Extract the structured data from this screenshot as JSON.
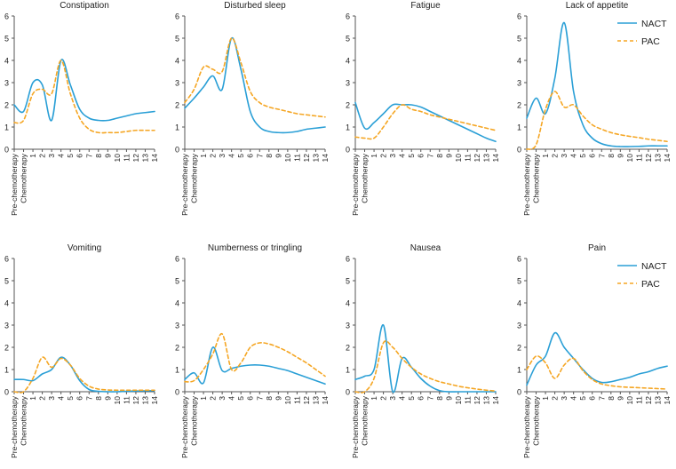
{
  "colors": {
    "nact": "#2a9fd6",
    "pac": "#f5a623",
    "axis": "#555555",
    "text": "#222222"
  },
  "chart_data": [
    {
      "type": "line",
      "title": "Constipation",
      "categories": [
        "Pre-chemotherapy",
        "Chemotherapy",
        "1",
        "2",
        "3",
        "4",
        "5",
        "6",
        "7",
        "8",
        "9",
        "10",
        "11",
        "12",
        "13",
        "14"
      ],
      "ylim": [
        0,
        6
      ],
      "yticks": [
        "0",
        "1",
        "2",
        "3",
        "4",
        "5",
        "6"
      ],
      "legend": false,
      "series": [
        {
          "name": "NACT",
          "values": [
            2.0,
            1.7,
            3.0,
            2.9,
            1.3,
            4.0,
            2.9,
            1.8,
            1.4,
            1.3,
            1.3,
            1.4,
            1.5,
            1.6,
            1.65,
            1.7
          ]
        },
        {
          "name": "PAC",
          "values": [
            1.2,
            1.3,
            2.5,
            2.7,
            2.5,
            4.0,
            2.5,
            1.4,
            0.9,
            0.75,
            0.75,
            0.75,
            0.8,
            0.85,
            0.85,
            0.85
          ]
        }
      ]
    },
    {
      "type": "line",
      "title": "Disturbed sleep",
      "categories": [
        "Pre-chemotherapy",
        "Chemotherapy",
        "1",
        "2",
        "3",
        "4",
        "5",
        "6",
        "7",
        "8",
        "9",
        "10",
        "11",
        "12",
        "13",
        "14"
      ],
      "ylim": [
        0,
        6
      ],
      "yticks": [
        "0",
        "1",
        "2",
        "3",
        "4",
        "5",
        "6"
      ],
      "legend": false,
      "series": [
        {
          "name": "NACT",
          "values": [
            1.85,
            2.3,
            2.8,
            3.3,
            2.7,
            5.0,
            3.6,
            1.7,
            1.0,
            0.8,
            0.75,
            0.75,
            0.8,
            0.9,
            0.95,
            1.0
          ]
        },
        {
          "name": "PAC",
          "values": [
            2.1,
            2.7,
            3.7,
            3.6,
            3.5,
            5.0,
            3.9,
            2.6,
            2.1,
            1.9,
            1.8,
            1.7,
            1.6,
            1.55,
            1.5,
            1.45
          ]
        }
      ]
    },
    {
      "type": "line",
      "title": "Fatigue",
      "categories": [
        "Pre-chemotherapy",
        "Chemotherapy",
        "1",
        "2",
        "3",
        "4",
        "5",
        "6",
        "7",
        "8",
        "9",
        "10",
        "11",
        "12",
        "13",
        "14"
      ],
      "ylim": [
        0,
        6
      ],
      "yticks": [
        "0",
        "1",
        "2",
        "3",
        "4",
        "5",
        "6"
      ],
      "legend": false,
      "series": [
        {
          "name": "NACT",
          "values": [
            2.1,
            0.95,
            1.2,
            1.6,
            2.0,
            2.0,
            2.0,
            1.9,
            1.7,
            1.5,
            1.3,
            1.1,
            0.9,
            0.7,
            0.5,
            0.35
          ]
        },
        {
          "name": "PAC",
          "values": [
            0.55,
            0.5,
            0.5,
            1.0,
            1.6,
            2.0,
            1.8,
            1.7,
            1.55,
            1.45,
            1.35,
            1.25,
            1.15,
            1.05,
            0.95,
            0.85
          ]
        }
      ]
    },
    {
      "type": "line",
      "title": "Lack of appetite",
      "categories": [
        "Pre-chemotherapy",
        "Chemotherapy",
        "1",
        "2",
        "3",
        "4",
        "5",
        "6",
        "7",
        "8",
        "9",
        "10",
        "11",
        "12",
        "13",
        "14"
      ],
      "ylim": [
        0,
        6
      ],
      "yticks": [
        "0",
        "1",
        "2",
        "3",
        "4",
        "5",
        "6"
      ],
      "legend": true,
      "series": [
        {
          "name": "NACT",
          "values": [
            1.4,
            2.3,
            1.6,
            3.2,
            5.7,
            2.6,
            1.1,
            0.5,
            0.25,
            0.15,
            0.12,
            0.12,
            0.13,
            0.15,
            0.15,
            0.15
          ]
        },
        {
          "name": "PAC",
          "values": [
            0.0,
            0.2,
            1.8,
            2.6,
            1.9,
            2.0,
            1.5,
            1.1,
            0.9,
            0.75,
            0.65,
            0.58,
            0.52,
            0.45,
            0.4,
            0.35
          ]
        }
      ]
    },
    {
      "type": "line",
      "title": "Vomiting",
      "categories": [
        "Pre-chemotherapy",
        "Chemotherapy",
        "1",
        "2",
        "3",
        "4",
        "5",
        "6",
        "7",
        "8",
        "9",
        "10",
        "11",
        "12",
        "13",
        "14"
      ],
      "ylim": [
        0,
        6
      ],
      "yticks": [
        "0",
        "1",
        "2",
        "3",
        "4",
        "5",
        "6"
      ],
      "legend": false,
      "series": [
        {
          "name": "NACT",
          "values": [
            0.55,
            0.55,
            0.5,
            0.8,
            1.0,
            1.55,
            1.2,
            0.5,
            0.1,
            0.02,
            0.0,
            0.0,
            0.02,
            0.03,
            0.04,
            0.05
          ]
        },
        {
          "name": "PAC",
          "values": [
            0.0,
            0.0,
            0.6,
            1.55,
            1.1,
            1.5,
            1.2,
            0.6,
            0.25,
            0.12,
            0.08,
            0.07,
            0.07,
            0.07,
            0.07,
            0.07
          ]
        }
      ]
    },
    {
      "type": "line",
      "title": "Numberness or tringling",
      "categories": [
        "Pre-chemotherapy",
        "Chemotherapy",
        "1",
        "2",
        "3",
        "4",
        "5",
        "6",
        "7",
        "8",
        "9",
        "10",
        "11",
        "12",
        "13",
        "14"
      ],
      "ylim": [
        0,
        6
      ],
      "yticks": [
        "0",
        "1",
        "2",
        "3",
        "4",
        "5",
        "6"
      ],
      "legend": false,
      "series": [
        {
          "name": "NACT",
          "values": [
            0.55,
            0.85,
            0.4,
            2.0,
            0.95,
            1.05,
            1.15,
            1.2,
            1.2,
            1.15,
            1.05,
            0.95,
            0.8,
            0.65,
            0.5,
            0.35
          ]
        },
        {
          "name": "PAC",
          "values": [
            0.45,
            0.5,
            1.0,
            1.7,
            2.6,
            1.0,
            1.3,
            2.0,
            2.2,
            2.15,
            2.0,
            1.8,
            1.55,
            1.3,
            1.0,
            0.7
          ]
        }
      ]
    },
    {
      "type": "line",
      "title": "Nausea",
      "categories": [
        "Pre-chemotherapy",
        "Chemotherapy",
        "1",
        "2",
        "3",
        "4",
        "5",
        "6",
        "7",
        "8",
        "9",
        "10",
        "11",
        "12",
        "13",
        "14"
      ],
      "ylim": [
        0,
        6
      ],
      "yticks": [
        "0",
        "1",
        "2",
        "3",
        "4",
        "5",
        "6"
      ],
      "legend": false,
      "series": [
        {
          "name": "NACT",
          "values": [
            0.55,
            0.7,
            1.0,
            3.0,
            0.0,
            1.5,
            1.1,
            0.6,
            0.25,
            0.05,
            0.0,
            0.0,
            0.0,
            0.0,
            0.0,
            0.0
          ]
        },
        {
          "name": "PAC",
          "values": [
            0.0,
            0.0,
            0.6,
            2.2,
            2.0,
            1.5,
            1.1,
            0.8,
            0.6,
            0.45,
            0.35,
            0.25,
            0.18,
            0.12,
            0.07,
            0.03
          ]
        }
      ]
    },
    {
      "type": "line",
      "title": "Pain",
      "categories": [
        "Pre-chemotherapy",
        "Chemotherapy",
        "1",
        "2",
        "3",
        "4",
        "5",
        "6",
        "7",
        "8",
        "9",
        "10",
        "11",
        "12",
        "13",
        "14"
      ],
      "ylim": [
        0,
        6
      ],
      "yticks": [
        "0",
        "1",
        "2",
        "3",
        "4",
        "5",
        "6"
      ],
      "legend": true,
      "series": [
        {
          "name": "NACT",
          "values": [
            0.3,
            1.2,
            1.6,
            2.65,
            2.0,
            1.5,
            1.0,
            0.6,
            0.42,
            0.45,
            0.55,
            0.65,
            0.8,
            0.9,
            1.05,
            1.15
          ]
        },
        {
          "name": "PAC",
          "values": [
            1.0,
            1.6,
            1.3,
            0.6,
            1.2,
            1.5,
            0.95,
            0.55,
            0.35,
            0.27,
            0.22,
            0.2,
            0.18,
            0.16,
            0.14,
            0.12
          ]
        }
      ]
    }
  ]
}
